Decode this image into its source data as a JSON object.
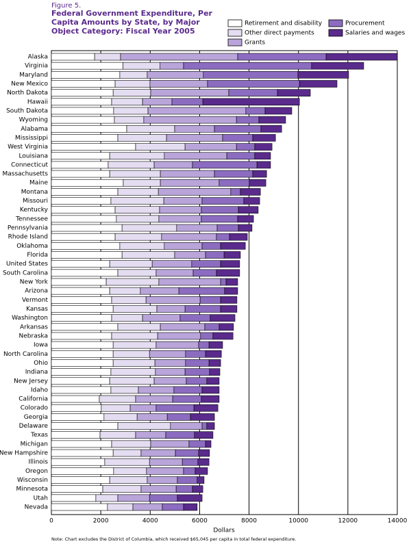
{
  "chart_data": {
    "type": "stacked-bar-horizontal",
    "figure_label": "Figure 5.",
    "title": [
      "Federal Government Expenditure, Per",
      "Capita Amounts by State, by Major",
      "Object Category:  Fiscal Year 2005"
    ],
    "x_label": "Dollars",
    "note": "Note:  Chart excludes the District of Columbia, which received $65,045 per capita in total federal expenditure.",
    "xlim": [
      0,
      14000
    ],
    "xticks": [
      0,
      2000,
      4000,
      6000,
      8000,
      10000,
      12000,
      14000
    ],
    "grid": true,
    "categories": [
      "Alaska",
      "Virginia",
      "Maryland",
      "New Mexico",
      "North Dakota",
      "Hawaii",
      "South Dakota",
      "Wyoming",
      "Alabama",
      "Mississippi",
      "West Virginia",
      "Louisiana",
      "Connecticut",
      "Massachusetts",
      "Maine",
      "Montana",
      "Missouri",
      "Kentucky",
      "Tennessee",
      "Pennsylvania",
      "Rhode Island",
      "Oklahoma",
      "Florida",
      "United States",
      "South Carolina",
      "New York",
      "Arizona",
      "Vermont",
      "Kansas",
      "Washington",
      "Arkansas",
      "Nebraska",
      "Iowa",
      "North Carolina",
      "Ohio",
      "Indiana",
      "New Jersey",
      "Idaho",
      "California",
      "Colorado",
      "Georgia",
      "Delaware",
      "Texas",
      "Michigan",
      "New Hampshire",
      "Illinois",
      "Oregon",
      "Wisconsin",
      "Minnesota",
      "Utah",
      "Nevada"
    ],
    "series": [
      {
        "name": "Retirement and disability",
        "color": "#ffffff",
        "values": [
          1750,
          2900,
          2770,
          2580,
          2500,
          2440,
          2520,
          2550,
          3050,
          2690,
          3410,
          2360,
          2300,
          2360,
          2910,
          2690,
          2410,
          2580,
          2630,
          2860,
          2580,
          2770,
          2860,
          2360,
          2690,
          2220,
          2360,
          2440,
          2500,
          2440,
          2690,
          2440,
          2500,
          2500,
          2500,
          2410,
          2360,
          2410,
          1940,
          2020,
          2130,
          2690,
          1970,
          2440,
          2500,
          2160,
          2520,
          2360,
          2080,
          1800,
          2270
        ]
      },
      {
        "name": "Other direct payments",
        "color": "#e4dcf0",
        "values": [
          1050,
          1500,
          1110,
          1410,
          1520,
          1250,
          1390,
          1190,
          1940,
          1970,
          2000,
          2210,
          1860,
          2050,
          1500,
          1640,
          2140,
          1800,
          1720,
          2210,
          1880,
          1800,
          2130,
          1720,
          1550,
          2130,
          1240,
          1390,
          1770,
          1250,
          1720,
          1860,
          1740,
          1470,
          1690,
          1800,
          1800,
          1110,
          1470,
          1170,
          1340,
          2130,
          1440,
          1580,
          1130,
          1810,
          1330,
          1520,
          1550,
          890,
          1030
        ]
      },
      {
        "name": "Grants",
        "color": "#b9a5da",
        "values": [
          4740,
          950,
          2270,
          2330,
          3160,
          1190,
          3960,
          3750,
          1610,
          2270,
          2080,
          2530,
          1550,
          2190,
          2380,
          2930,
          1550,
          1690,
          1720,
          1640,
          2220,
          1530,
          1250,
          1600,
          1500,
          2500,
          1560,
          2190,
          1140,
          1520,
          1800,
          1740,
          1720,
          1460,
          1240,
          1200,
          1300,
          1440,
          1500,
          1050,
          1220,
          1280,
          1220,
          1550,
          1390,
          1330,
          1500,
          1220,
          1420,
          1280,
          1190
        ]
      },
      {
        "name": "Procurement",
        "color": "#8c6cc0",
        "values": [
          3580,
          5180,
          3830,
          3720,
          1970,
          1250,
          780,
          910,
          1880,
          1220,
          740,
          1130,
          2610,
          1550,
          1220,
          390,
          1690,
          1500,
          1470,
          860,
          530,
          750,
          750,
          1170,
          940,
          220,
          1850,
          830,
          1440,
          1220,
          580,
          500,
          420,
          810,
          950,
          990,
          830,
          1140,
          1160,
          1530,
          940,
          190,
          1160,
          670,
          940,
          630,
          470,
          800,
          660,
          1130,
          860
        ]
      },
      {
        "name": "Salaries and wages",
        "color": "#5a2a8c",
        "values": [
          2880,
          2110,
          2050,
          1520,
          1330,
          3910,
          1080,
          1080,
          840,
          920,
          700,
          640,
          550,
          560,
          670,
          810,
          640,
          800,
          640,
          550,
          720,
          1000,
          660,
          770,
          940,
          470,
          530,
          660,
          660,
          1000,
          580,
          810,
          550,
          640,
          470,
          420,
          500,
          690,
          720,
          970,
          970,
          310,
          750,
          220,
          440,
          450,
          500,
          280,
          420,
          1000,
          550
        ]
      }
    ]
  }
}
